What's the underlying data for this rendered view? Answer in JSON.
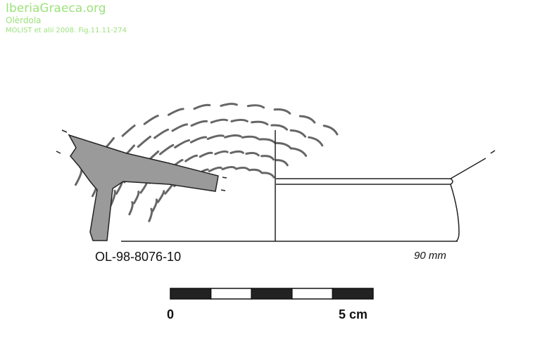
{
  "watermark": {
    "site": "IberiaGraeca.org",
    "location": "Olèrdola",
    "reference": "MOLIST et alii 2008. Fig.11.11-274"
  },
  "drawing": {
    "object_code": "OL-98-8076-10",
    "diameter": "90 mm",
    "section_fill": "#9a9a9a"
  },
  "scale_bar": {
    "start_label": "0",
    "end_label": "5 cm",
    "segments": 5
  }
}
